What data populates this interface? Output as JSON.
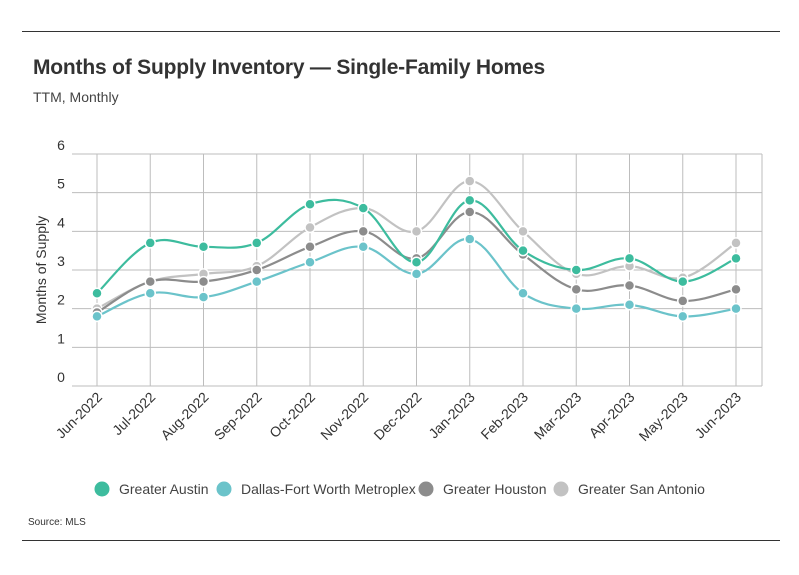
{
  "chart_data": {
    "type": "line",
    "title": "Months of Supply Inventory — Single-Family Homes",
    "subtitle": "TTM, Monthly",
    "ylabel": "Months of Supply",
    "xlabel": "",
    "source": "Source: MLS",
    "ylim": [
      0,
      6
    ],
    "yticks": [
      "0",
      "1",
      "2",
      "3",
      "4",
      "5",
      "6"
    ],
    "categories": [
      "Jun-2022",
      "Jul-2022",
      "Aug-2022",
      "Sep-2022",
      "Oct-2022",
      "Nov-2022",
      "Dec-2022",
      "Jan-2023",
      "Feb-2023",
      "Mar-2023",
      "Apr-2023",
      "May-2023",
      "Jun-2023"
    ],
    "grid": true,
    "legend_position": "bottom",
    "series": [
      {
        "name": "Greater Austin",
        "color": "#3dbc9e",
        "values": [
          2.4,
          3.7,
          3.6,
          3.7,
          4.7,
          4.6,
          3.2,
          4.8,
          3.5,
          3.0,
          3.3,
          2.7,
          3.3
        ]
      },
      {
        "name": "Dallas-Fort Worth Metroplex",
        "color": "#6bc3ca",
        "values": [
          1.8,
          2.4,
          2.3,
          2.7,
          3.2,
          3.6,
          2.9,
          3.8,
          2.4,
          2.0,
          2.1,
          1.8,
          2.0
        ]
      },
      {
        "name": "Greater Houston",
        "color": "#8c8c8c",
        "values": [
          1.9,
          2.7,
          2.7,
          3.0,
          3.6,
          4.0,
          3.3,
          4.5,
          3.4,
          2.5,
          2.6,
          2.2,
          2.5
        ]
      },
      {
        "name": "Greater San Antonio",
        "color": "#c2c2c2",
        "values": [
          2.0,
          2.7,
          2.9,
          3.1,
          4.1,
          4.6,
          4.0,
          5.3,
          4.0,
          2.9,
          3.1,
          2.8,
          3.7
        ]
      }
    ]
  }
}
